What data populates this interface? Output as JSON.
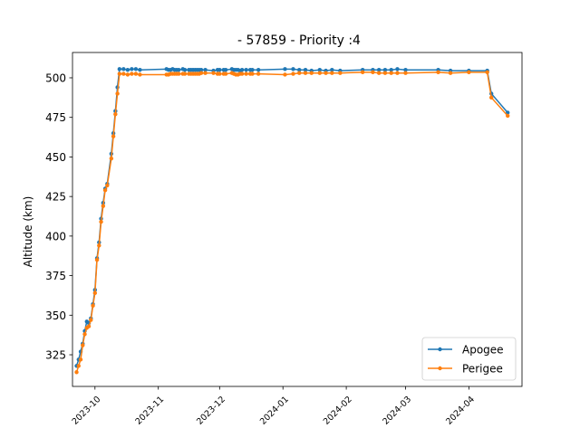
{
  "chart_data": {
    "type": "line",
    "title": "- 57859 - Priority :4",
    "xlabel": "",
    "ylabel": "Altitude (km)",
    "x_is_date": true,
    "xlim": [
      "2023-09-20",
      "2024-04-27"
    ],
    "ylim": [
      305,
      516
    ],
    "y_ticks": [
      325,
      350,
      375,
      400,
      425,
      450,
      475,
      500
    ],
    "x_ticks": [
      {
        "date": "2023-10-01",
        "label": "2023-10"
      },
      {
        "date": "2023-11-01",
        "label": "2023-11"
      },
      {
        "date": "2023-12-01",
        "label": "2023-12"
      },
      {
        "date": "2024-01-01",
        "label": "2024-01"
      },
      {
        "date": "2024-02-01",
        "label": "2024-02"
      },
      {
        "date": "2024-03-01",
        "label": "2024-03"
      },
      {
        "date": "2024-04-01",
        "label": "2024-04"
      }
    ],
    "grid": false,
    "legend_position": "bottom-right",
    "series": [
      {
        "name": "Apogee",
        "color": "#1f77b4",
        "points": [
          [
            "2023-09-22",
            318
          ],
          [
            "2023-09-23",
            322
          ],
          [
            "2023-09-24",
            327
          ],
          [
            "2023-09-25",
            332
          ],
          [
            "2023-09-26",
            340
          ],
          [
            "2023-09-27",
            346
          ],
          [
            "2023-09-28",
            345
          ],
          [
            "2023-09-29",
            348
          ],
          [
            "2023-09-30",
            357
          ],
          [
            "2023-10-01",
            366
          ],
          [
            "2023-10-02",
            386
          ],
          [
            "2023-10-03",
            396
          ],
          [
            "2023-10-04",
            411
          ],
          [
            "2023-10-05",
            421
          ],
          [
            "2023-10-06",
            430
          ],
          [
            "2023-10-07",
            433
          ],
          [
            "2023-10-09",
            452
          ],
          [
            "2023-10-10",
            465
          ],
          [
            "2023-10-11",
            479
          ],
          [
            "2023-10-12",
            494
          ],
          [
            "2023-10-13",
            505.5
          ],
          [
            "2023-10-15",
            505.5
          ],
          [
            "2023-10-17",
            505
          ],
          [
            "2023-10-19",
            505.5
          ],
          [
            "2023-10-21",
            505.5
          ],
          [
            "2023-10-23",
            505
          ],
          [
            "2023-11-05",
            505.5
          ],
          [
            "2023-11-06",
            505
          ],
          [
            "2023-11-07",
            505
          ],
          [
            "2023-11-08",
            505.5
          ],
          [
            "2023-11-09",
            505
          ],
          [
            "2023-11-10",
            505
          ],
          [
            "2023-11-11",
            505
          ],
          [
            "2023-11-13",
            505.5
          ],
          [
            "2023-11-14",
            505
          ],
          [
            "2023-11-16",
            505
          ],
          [
            "2023-11-17",
            505
          ],
          [
            "2023-11-18",
            505
          ],
          [
            "2023-11-19",
            505
          ],
          [
            "2023-11-20",
            505
          ],
          [
            "2023-11-21",
            505
          ],
          [
            "2023-11-22",
            505
          ],
          [
            "2023-11-24",
            505
          ],
          [
            "2023-11-28",
            504.5
          ],
          [
            "2023-11-30",
            505
          ],
          [
            "2023-12-01",
            505
          ],
          [
            "2023-12-03",
            505
          ],
          [
            "2023-12-04",
            505
          ],
          [
            "2023-12-07",
            505.5
          ],
          [
            "2023-12-08",
            505
          ],
          [
            "2023-12-09",
            505
          ],
          [
            "2023-12-10",
            505
          ],
          [
            "2023-12-11",
            504.5
          ],
          [
            "2023-12-12",
            505
          ],
          [
            "2023-12-14",
            505
          ],
          [
            "2023-12-16",
            505
          ],
          [
            "2023-12-17",
            505
          ],
          [
            "2023-12-20",
            505
          ],
          [
            "2024-01-02",
            505.5
          ],
          [
            "2024-01-06",
            505.5
          ],
          [
            "2024-01-09",
            505
          ],
          [
            "2024-01-12",
            505
          ],
          [
            "2024-01-15",
            504.5
          ],
          [
            "2024-01-19",
            505
          ],
          [
            "2024-01-22",
            504.5
          ],
          [
            "2024-01-25",
            505
          ],
          [
            "2024-01-29",
            504.5
          ],
          [
            "2024-02-09",
            505
          ],
          [
            "2024-02-14",
            505
          ],
          [
            "2024-02-17",
            505
          ],
          [
            "2024-02-20",
            505
          ],
          [
            "2024-02-23",
            505
          ],
          [
            "2024-02-26",
            505.5
          ],
          [
            "2024-03-01",
            505
          ],
          [
            "2024-03-17",
            505
          ],
          [
            "2024-03-23",
            504.5
          ],
          [
            "2024-04-01",
            504.5
          ],
          [
            "2024-04-10",
            504.5
          ],
          [
            "2024-04-12",
            490
          ],
          [
            "2024-04-20",
            478
          ]
        ]
      },
      {
        "name": "Perigee",
        "color": "#ff7f0e",
        "points": [
          [
            "2023-09-22",
            314
          ],
          [
            "2023-09-23",
            318
          ],
          [
            "2023-09-24",
            322
          ],
          [
            "2023-09-25",
            331
          ],
          [
            "2023-09-26",
            338
          ],
          [
            "2023-09-27",
            342
          ],
          [
            "2023-09-28",
            343
          ],
          [
            "2023-09-29",
            347
          ],
          [
            "2023-09-30",
            356
          ],
          [
            "2023-10-01",
            364
          ],
          [
            "2023-10-02",
            385
          ],
          [
            "2023-10-03",
            394
          ],
          [
            "2023-10-04",
            409
          ],
          [
            "2023-10-05",
            419
          ],
          [
            "2023-10-06",
            429
          ],
          [
            "2023-10-07",
            432
          ],
          [
            "2023-10-09",
            449
          ],
          [
            "2023-10-10",
            463
          ],
          [
            "2023-10-11",
            477
          ],
          [
            "2023-10-12",
            490
          ],
          [
            "2023-10-13",
            502.5
          ],
          [
            "2023-10-15",
            502.5
          ],
          [
            "2023-10-17",
            502
          ],
          [
            "2023-10-19",
            502.5
          ],
          [
            "2023-10-21",
            502.5
          ],
          [
            "2023-10-23",
            502
          ],
          [
            "2023-11-05",
            502
          ],
          [
            "2023-11-06",
            502
          ],
          [
            "2023-11-07",
            502.5
          ],
          [
            "2023-11-08",
            502.5
          ],
          [
            "2023-11-09",
            502.5
          ],
          [
            "2023-11-10",
            502.5
          ],
          [
            "2023-11-11",
            502.5
          ],
          [
            "2023-11-13",
            502.5
          ],
          [
            "2023-11-14",
            502.5
          ],
          [
            "2023-11-16",
            502.5
          ],
          [
            "2023-11-17",
            502.5
          ],
          [
            "2023-11-18",
            502.5
          ],
          [
            "2023-11-19",
            502.5
          ],
          [
            "2023-11-20",
            502.5
          ],
          [
            "2023-11-21",
            502.5
          ],
          [
            "2023-11-22",
            503
          ],
          [
            "2023-11-24",
            503
          ],
          [
            "2023-11-28",
            503
          ],
          [
            "2023-11-30",
            502.5
          ],
          [
            "2023-12-01",
            502.5
          ],
          [
            "2023-12-03",
            502.5
          ],
          [
            "2023-12-04",
            502.5
          ],
          [
            "2023-12-07",
            503
          ],
          [
            "2023-12-08",
            502.5
          ],
          [
            "2023-12-09",
            502
          ],
          [
            "2023-12-10",
            502
          ],
          [
            "2023-12-11",
            502.5
          ],
          [
            "2023-12-12",
            502.5
          ],
          [
            "2023-12-14",
            502.5
          ],
          [
            "2023-12-16",
            502.5
          ],
          [
            "2023-12-17",
            502.5
          ],
          [
            "2023-12-20",
            502.5
          ],
          [
            "2024-01-02",
            502
          ],
          [
            "2024-01-06",
            502.5
          ],
          [
            "2024-01-09",
            503
          ],
          [
            "2024-01-12",
            503
          ],
          [
            "2024-01-15",
            503
          ],
          [
            "2024-01-19",
            503
          ],
          [
            "2024-01-22",
            503
          ],
          [
            "2024-01-25",
            503
          ],
          [
            "2024-01-29",
            503
          ],
          [
            "2024-02-09",
            503.5
          ],
          [
            "2024-02-14",
            503.5
          ],
          [
            "2024-02-17",
            503
          ],
          [
            "2024-02-20",
            503
          ],
          [
            "2024-02-23",
            503
          ],
          [
            "2024-02-26",
            503
          ],
          [
            "2024-03-01",
            503
          ],
          [
            "2024-03-17",
            503.5
          ],
          [
            "2024-03-23",
            503
          ],
          [
            "2024-04-01",
            503.5
          ],
          [
            "2024-04-10",
            503.5
          ],
          [
            "2024-04-12",
            487.5
          ],
          [
            "2024-04-20",
            476
          ]
        ]
      }
    ]
  }
}
